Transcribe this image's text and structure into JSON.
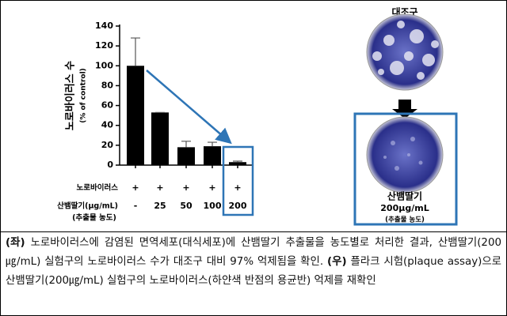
{
  "chart_data": {
    "type": "bar",
    "y_label": "노로바이러스 수",
    "y_label_sub": "(% of control)",
    "categories": [
      "-",
      "25",
      "50",
      "100",
      "200"
    ],
    "values": [
      100,
      53,
      18,
      19,
      3
    ],
    "errors": [
      28,
      0,
      6,
      4,
      1
    ],
    "color": "#000000",
    "ylim": [
      0,
      140
    ],
    "yticks": [
      0,
      20,
      40,
      60,
      80,
      100,
      120,
      140
    ],
    "virus_row_label": "노로바이러스",
    "virus_signs": [
      "+",
      "+",
      "+",
      "+",
      "+"
    ],
    "extract_row_label": "산뱀딸기(μg/mL)",
    "extract_row_note": "(추출물 농도)"
  },
  "plates": {
    "control_label": "대조구",
    "treated_label": "산뱀딸기",
    "treated_dose": "200μg/mL",
    "treated_note": "(추출물 농도)"
  },
  "caption": {
    "left_tag": "(좌)",
    "left_text": " 노로바이러스에 감염된 면역세포(대식세포)에 산뱀딸기 추출물을 농도별로 처리한 결과, 산뱀딸기(200㎍/mL) 실험구의 노로바이러스 수가 대조구 대비 97% 억제됨을 확인. ",
    "right_tag": "(우)",
    "right_text": " 플라크 시험(plaque assay)으로 산뱀딸기(200㎍/mL) 실험구의 노로바이러스(하얀색 반점의 용균반) 억제를 재확인"
  }
}
